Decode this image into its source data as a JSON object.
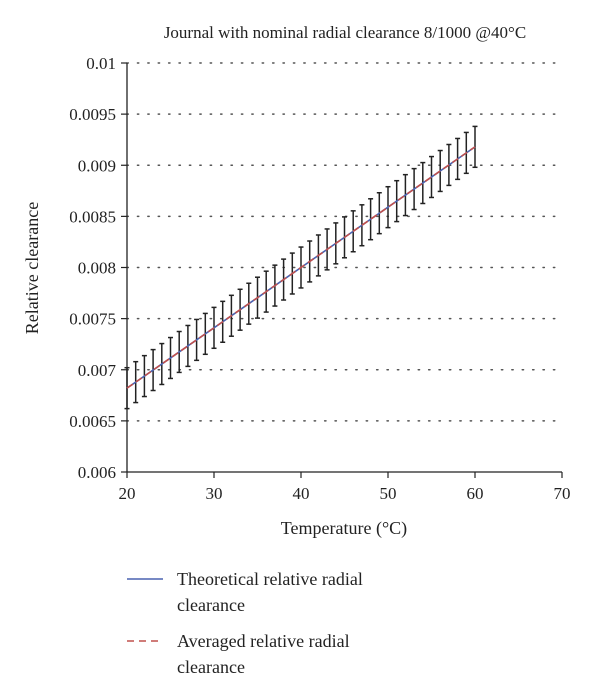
{
  "chart_data": {
    "type": "line",
    "title": "Journal with nominal radial clearance 8/1000 @40°C",
    "xlabel": "Temperature (°C)",
    "ylabel": "Relative clearance",
    "xlim": [
      20,
      70
    ],
    "ylim": [
      0.006,
      0.01
    ],
    "x_ticks": [
      20,
      30,
      40,
      50,
      60,
      70
    ],
    "x_tick_labels": [
      "20",
      "30",
      "40",
      "50",
      "60",
      "70"
    ],
    "y_ticks": [
      0.006,
      0.0065,
      0.007,
      0.0075,
      0.008,
      0.0085,
      0.009,
      0.0095,
      0.01
    ],
    "y_tick_labels": [
      "0.006",
      "0.0065",
      "0.007",
      "0.0075",
      "0.008",
      "0.0085",
      "0.009",
      "0.0095",
      "0.01"
    ],
    "grid": "horizontal dotted",
    "legend_position": "bottom",
    "error_bars": {
      "x_start": 20,
      "x_end": 60,
      "x_step": 1,
      "half_width": 0.0002,
      "color": "#222222"
    },
    "series": [
      {
        "name": "Theoretical relative radial clearance",
        "name_lines": [
          "Theoretical relative radial",
          "clearance"
        ],
        "style": "solid",
        "color": "#4a62b0",
        "x": [
          20,
          60
        ],
        "y": [
          0.00682,
          0.00918
        ]
      },
      {
        "name": "Averaged relative radial clearance",
        "name_lines": [
          "Averaged relative radial",
          "clearance"
        ],
        "style": "dashed",
        "color": "#c0504d",
        "x": [
          20,
          60
        ],
        "y": [
          0.00682,
          0.00918
        ]
      }
    ]
  }
}
